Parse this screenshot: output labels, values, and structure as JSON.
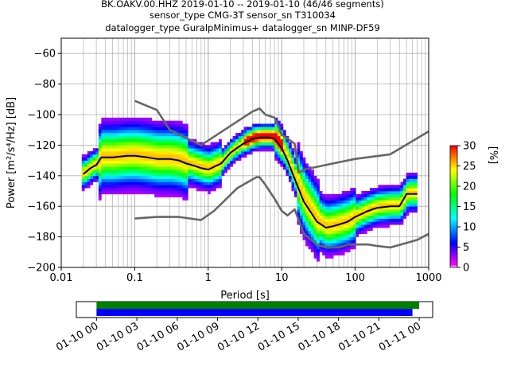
{
  "title": {
    "line1": "BK.OAKV.00.HHZ   2019-01-10 -- 2019-01-10  (46/46 segments)",
    "line2": "sensor_type CMG-3T sensor_sn T310034",
    "line3": "datalogger_type GuralpMinimus+ datalogger_sn MINP-DF59"
  },
  "chart_data": {
    "type": "heatmap",
    "subtype": "probabilistic power spectral density",
    "xlabel": "Period [s]",
    "ylabel": "Power [m²/s⁴/Hz] [dB]",
    "xscale": "log",
    "xlim": [
      0.01,
      1000
    ],
    "ylim": [
      -200,
      -50
    ],
    "xticks": [
      0.01,
      0.1,
      1,
      10,
      100,
      1000
    ],
    "xtick_labels": [
      "0.01",
      "0.1",
      "1",
      "10",
      "100",
      "1000"
    ],
    "yticks": [
      -200,
      -180,
      -160,
      -140,
      -120,
      -100,
      -80,
      -60
    ],
    "grid": true,
    "colorbar": {
      "label": "[%]",
      "range": [
        0,
        30
      ],
      "ticks": [
        0,
        5,
        10,
        15,
        20,
        25,
        30
      ],
      "colors": [
        "#ffffff",
        "#ff00ff",
        "#0000ff",
        "#00ffff",
        "#00ff00",
        "#ffff00",
        "#ff0000"
      ]
    },
    "series": [
      {
        "name": "mode",
        "color": "#000000",
        "x": [
          0.02,
          0.025,
          0.03,
          0.035,
          0.05,
          0.08,
          0.1,
          0.15,
          0.2,
          0.3,
          0.4,
          0.5,
          0.6,
          0.8,
          1,
          1.5,
          2,
          3,
          4,
          5,
          6,
          7,
          8,
          10,
          12,
          15,
          20,
          25,
          30,
          40,
          50,
          60,
          80,
          100,
          150,
          200,
          300,
          400,
          500,
          600,
          700
        ],
        "values": [
          -139,
          -135,
          -133,
          -128,
          -128,
          -127,
          -127,
          -128,
          -129,
          -129,
          -130,
          -132,
          -133,
          -135,
          -136,
          -132,
          -125,
          -119,
          -116,
          -115,
          -115,
          -115,
          -116,
          -122,
          -130,
          -142,
          -157,
          -164,
          -170,
          -174,
          -173,
          -172,
          -170,
          -167,
          -163,
          -161,
          -160,
          -160,
          -152,
          -152,
          -152
        ]
      },
      {
        "name": "NHNM",
        "color": "#666666",
        "x": [
          0.1,
          0.2,
          0.3,
          0.8,
          4,
          5,
          6,
          8,
          10,
          15,
          17,
          20,
          50,
          100,
          300,
          1000
        ],
        "values": [
          -91,
          -97,
          -110,
          -120,
          -98,
          -96,
          -100,
          -102,
          -113,
          -119,
          -138,
          -136,
          -132,
          -129,
          -126,
          -111
        ]
      },
      {
        "name": "NLNM",
        "color": "#666666",
        "x": [
          0.1,
          0.2,
          0.4,
          0.8,
          1.2,
          2.5,
          4.5,
          5,
          6,
          8,
          10,
          12,
          15,
          20,
          30,
          40,
          60,
          80,
          100,
          150,
          200,
          300,
          500,
          700,
          1000
        ],
        "values": [
          -168,
          -167,
          -167,
          -169,
          -163,
          -148,
          -141,
          -141,
          -146,
          -155,
          -163,
          -166,
          -162,
          -178,
          -185,
          -187,
          -187,
          -185,
          -185,
          -185,
          -186,
          -187,
          -184,
          -182,
          -178
        ]
      }
    ],
    "coverage": {
      "xtick_labels": [
        "01-10 00",
        "01-10 03",
        "01-10 06",
        "01-10 09",
        "01-10 12",
        "01-10 15",
        "01-10 18",
        "01-10 21",
        "01-11 00"
      ],
      "xlim_hours": [
        -1.5,
        25.0
      ],
      "bars": [
        {
          "name": "data",
          "color": "#008000",
          "start_hour": 0,
          "end_hour": 24.0
        },
        {
          "name": "used",
          "color": "#0000ff",
          "start_hour": 0,
          "end_hour": 23.5
        }
      ]
    }
  }
}
